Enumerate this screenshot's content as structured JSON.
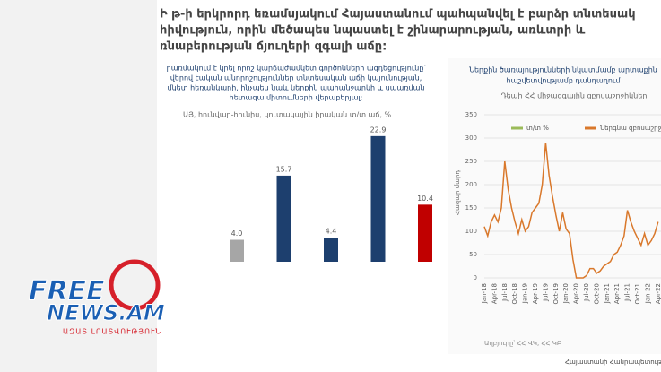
{
  "slide": {
    "title_lines": [
      "Ի թ-ի երկրորդ եռամսյակում Հայաստանում պահպանվել է բարձր տնտեսակ",
      "հիվություն, որին մեծապես նպաստել է շինարարության, առևտրի և",
      "ռնաբերության ճյուղերի զգալի աճը:"
    ],
    "footer": "Հայաստանի Հանրապետություն"
  },
  "logo": {
    "name_top": "FREE",
    "name_bottom": "NEWS.AM",
    "tagline": "ԱԶԱՏ ԼՐԱՏՎՈՒԹՅՈՒՆ"
  },
  "chart_data": [
    {
      "type": "bar",
      "text_lines": [
        "րառմակում է կրել որոշ կարճաժամկետ գործոնների ազդեցությունը՝",
        "վերով էական անորոշություններ տնտեսական աճի կայունության,",
        "մկետ հեռանկարի, ինչպես նաև ներքին պահանջարկի և սպառման",
        "հետագա միտումների վերաբերյալ:"
      ],
      "subtitle": "ԱՅ, հունվար-հունիս, կուտակային իրական տ/տ աճ, %",
      "categories": [
        null,
        null,
        null,
        null,
        null
      ],
      "values": [
        4.0,
        15.7,
        4.4,
        22.9,
        10.4
      ],
      "value_labels": [
        "4.0",
        "15.7",
        "4.4",
        "22.9",
        "10.4"
      ],
      "colors": [
        "#a6a6a6",
        "#1d3f6e",
        "#1d3f6e",
        "#1d3f6e",
        "#c00000"
      ],
      "ylim": [
        0,
        25
      ]
    },
    {
      "type": "line",
      "title_lines": [
        "Ներքին ծառայությունների նկատմամբ արտաքին",
        "հաշվետվությամբ դանդաղում"
      ],
      "subtitle": "Դեպի ՀՀ միջազգային զբոսաշրջիկներ",
      "y_label": "Հազար մարդ",
      "source": "Աղբյուրը՝ ՀՀ ՎԿ, ՀՀ ԿԲ",
      "legend": [
        {
          "name": "տ/տ %",
          "color": "#9bbb59"
        }
      ],
      "categories": [
        "Jan-18",
        null,
        null,
        "Apr-18",
        null,
        null,
        "Jul-18",
        null,
        null,
        "Oct-18",
        null,
        null,
        "Jan-19",
        null,
        null,
        "Apr-19",
        null,
        null,
        "Jul-19",
        null,
        null,
        "Oct-19",
        null,
        null,
        "Jan-20",
        null,
        null,
        "Apr-20",
        null,
        null,
        "Jul-20",
        null,
        null,
        "Oct-20",
        null,
        null,
        "Jan-21",
        null,
        null,
        "Apr-21",
        null,
        null,
        "Jul-21",
        null,
        null,
        "Oct-21",
        null,
        null,
        "Jan-22",
        null,
        null,
        "Apr-22"
      ],
      "series": [
        {
          "name": "Ներգնա զբոսաշրջ",
          "color": "#d9782b",
          "values": [
            110,
            90,
            120,
            135,
            120,
            150,
            250,
            190,
            150,
            120,
            95,
            125,
            100,
            110,
            140,
            150,
            160,
            200,
            290,
            220,
            175,
            135,
            100,
            140,
            105,
            95,
            40,
            0,
            0,
            0,
            5,
            20,
            20,
            10,
            15,
            25,
            30,
            35,
            50,
            55,
            70,
            90,
            145,
            120,
            100,
            85,
            70,
            95,
            70,
            80,
            95,
            120
          ]
        }
      ],
      "ylim": [
        0,
        350
      ],
      "yticks": [
        0,
        50,
        100,
        150,
        200,
        250,
        300,
        350
      ],
      "grid": true
    }
  ]
}
